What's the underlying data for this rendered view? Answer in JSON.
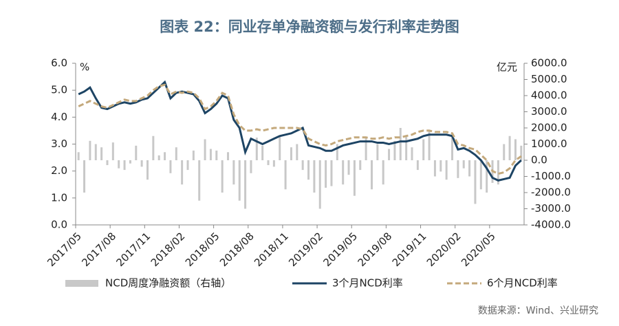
{
  "chart_data": {
    "type": "bar_line",
    "title": "图表 22：同业存单净融资额与发行利率走势图",
    "y_unit": "%",
    "y2_unit": "亿元",
    "source": "数据来源：Wind、兴业研究",
    "categories": [
      "2017/05",
      null,
      null,
      null,
      null,
      null,
      "2017/08",
      null,
      null,
      null,
      null,
      null,
      "2017/11",
      null,
      null,
      null,
      null,
      null,
      "2018/02",
      null,
      null,
      null,
      null,
      null,
      "2018/05",
      null,
      null,
      null,
      null,
      null,
      "2018/08",
      null,
      null,
      null,
      null,
      null,
      "2018/11",
      null,
      null,
      null,
      null,
      null,
      "2019/02",
      null,
      null,
      null,
      null,
      null,
      "2019/05",
      null,
      null,
      null,
      null,
      null,
      "2019/08",
      null,
      null,
      null,
      null,
      null,
      "2019/11",
      null,
      null,
      null,
      null,
      null,
      "2020/02",
      null,
      null,
      null,
      null,
      null,
      "2020/05",
      null,
      null,
      null,
      null,
      null
    ],
    "series": [
      {
        "name": "NCD周度净融资额（右轴）",
        "type": "bar",
        "axis": "y2",
        "color": "#c8c8c8",
        "values": [
          500,
          -2000,
          1200,
          1000,
          800,
          -300,
          1100,
          -500,
          -600,
          -200,
          900,
          -400,
          -1200,
          1500,
          300,
          500,
          -800,
          800,
          -1500,
          -600,
          600,
          -2500,
          1300,
          700,
          600,
          -2000,
          500,
          -1500,
          -2500,
          -3000,
          -800,
          1400,
          900,
          -300,
          -400,
          1500,
          -1800,
          800,
          1000,
          -600,
          -1200,
          -2000,
          -3000,
          -1700,
          -1600,
          1000,
          -1500,
          -900,
          -2200,
          -600,
          1400,
          -1800,
          1000,
          -1500,
          700,
          1200,
          2000,
          1500,
          800,
          -600,
          1300,
          1800,
          -1000,
          -700,
          -1200,
          1600,
          -1100,
          -500,
          -1000,
          -2700,
          -1800,
          -2000,
          -1400,
          -1500,
          1000,
          1500,
          1300,
          900
        ]
      },
      {
        "name": "3个月NCD利率",
        "type": "line",
        "axis": "y",
        "color": "#1d4464",
        "dash": false,
        "values": [
          4.85,
          4.95,
          5.1,
          4.7,
          4.35,
          4.3,
          4.4,
          4.5,
          4.55,
          4.5,
          4.55,
          4.65,
          4.7,
          4.9,
          5.1,
          5.3,
          4.7,
          4.9,
          4.95,
          4.9,
          4.85,
          4.6,
          4.15,
          4.3,
          4.5,
          4.8,
          4.7,
          3.9,
          3.6,
          2.7,
          3.2,
          3.1,
          3.0,
          3.1,
          3.2,
          3.3,
          3.35,
          3.4,
          3.5,
          3.6,
          2.95,
          2.9,
          2.85,
          2.75,
          2.75,
          2.85,
          2.95,
          3.0,
          3.05,
          3.1,
          3.1,
          3.1,
          3.05,
          3.05,
          3.0,
          3.05,
          3.1,
          3.1,
          3.15,
          3.2,
          3.3,
          3.35,
          3.35,
          3.35,
          3.35,
          3.3,
          2.8,
          2.85,
          2.75,
          2.6,
          2.4,
          2.1,
          1.75,
          1.65,
          1.7,
          1.75,
          2.2,
          2.4
        ]
      },
      {
        "name": "6个月NCD利率",
        "type": "line",
        "axis": "y",
        "color": "#c4a97c",
        "dash": true,
        "values": [
          4.4,
          4.5,
          4.6,
          4.5,
          4.4,
          4.35,
          4.45,
          4.55,
          4.65,
          4.6,
          4.6,
          4.7,
          4.8,
          5.0,
          5.15,
          5.2,
          4.85,
          4.95,
          4.9,
          4.95,
          4.9,
          4.7,
          4.3,
          4.4,
          4.6,
          4.9,
          4.8,
          4.1,
          3.7,
          3.5,
          3.5,
          3.55,
          3.5,
          3.55,
          3.6,
          3.6,
          3.6,
          3.6,
          3.6,
          3.55,
          3.2,
          3.1,
          3.0,
          2.95,
          3.0,
          3.1,
          3.15,
          3.2,
          3.25,
          3.25,
          3.25,
          3.2,
          3.2,
          3.25,
          3.2,
          3.25,
          3.25,
          3.3,
          3.35,
          3.45,
          3.5,
          3.5,
          3.45,
          3.45,
          3.45,
          3.4,
          3.0,
          2.95,
          2.85,
          2.8,
          2.6,
          2.4,
          2.0,
          1.9,
          1.95,
          2.1,
          2.4,
          2.55
        ]
      }
    ],
    "ylim": [
      0,
      6
    ],
    "yticks": [
      {
        "value": 0,
        "label": "0.0"
      },
      {
        "value": 1,
        "label": "1.0"
      },
      {
        "value": 2,
        "label": "2.0"
      },
      {
        "value": 3,
        "label": "3.0"
      },
      {
        "value": 4,
        "label": "4.0"
      },
      {
        "value": 5,
        "label": "5.0"
      },
      {
        "value": 6,
        "label": "6.0"
      }
    ],
    "y2lim": [
      -4000,
      6000
    ],
    "y2ticks": [
      {
        "value": -4000,
        "label": "-4000.0"
      },
      {
        "value": -3000,
        "label": "-3000.0"
      },
      {
        "value": -2000,
        "label": "-2000.0"
      },
      {
        "value": -1000,
        "label": "-1000.0"
      },
      {
        "value": 0,
        "label": "0.0"
      },
      {
        "value": 1000,
        "label": "1000.0"
      },
      {
        "value": 2000,
        "label": "2000.0"
      },
      {
        "value": 3000,
        "label": "3000.0"
      },
      {
        "value": 4000,
        "label": "4000.0"
      },
      {
        "value": 5000,
        "label": "5000.0"
      },
      {
        "value": 6000,
        "label": "6000.0"
      }
    ]
  }
}
